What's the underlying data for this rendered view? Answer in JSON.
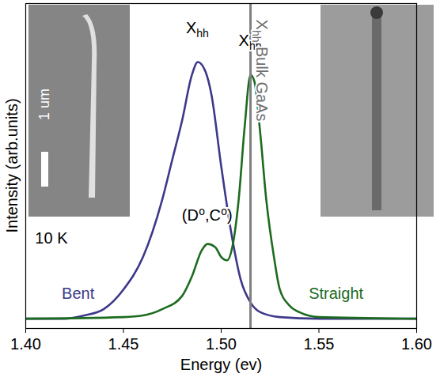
{
  "chart_data": {
    "type": "line",
    "x_label": "Energy (ev)",
    "y_label": "Intensity (arb.units)",
    "xlim": [
      1.4,
      1.6
    ],
    "xticks": [
      {
        "value": 1.4,
        "label": "1.40"
      },
      {
        "value": 1.45,
        "label": "1.45"
      },
      {
        "value": 1.5,
        "label": "1.50"
      },
      {
        "value": 1.55,
        "label": "1.55"
      },
      {
        "value": 1.6,
        "label": "1.60"
      }
    ],
    "ylim": [
      0,
      1
    ],
    "yticks": [],
    "tick_labels": "x",
    "series": [
      {
        "name": "Bent",
        "color": "#3d3889",
        "peak_label": [
          "X",
          "hh"
        ],
        "x": [
          1.4,
          1.42,
          1.43,
          1.44,
          1.45,
          1.46,
          1.47,
          1.475,
          1.48,
          1.485,
          1.488,
          1.492,
          1.495,
          1.5,
          1.505,
          1.51,
          1.515,
          1.52,
          1.53,
          1.55,
          1.6
        ],
        "values": [
          0.03,
          0.03,
          0.04,
          0.06,
          0.12,
          0.22,
          0.4,
          0.52,
          0.64,
          0.78,
          0.82,
          0.79,
          0.72,
          0.5,
          0.3,
          0.15,
          0.08,
          0.05,
          0.035,
          0.03,
          0.03
        ]
      },
      {
        "name": "Straight",
        "color": "#1c6b1f",
        "peak_label": [
          "X",
          "hh"
        ],
        "x": [
          1.4,
          1.45,
          1.46,
          1.47,
          1.48,
          1.485,
          1.49,
          1.493,
          1.497,
          1.5,
          1.503,
          1.506,
          1.509,
          1.512,
          1.515,
          1.517,
          1.52,
          1.523,
          1.527,
          1.53,
          1.535,
          1.54,
          1.55,
          1.6
        ],
        "values": [
          0.03,
          0.035,
          0.04,
          0.06,
          0.1,
          0.16,
          0.24,
          0.26,
          0.25,
          0.22,
          0.21,
          0.26,
          0.4,
          0.62,
          0.78,
          0.76,
          0.6,
          0.4,
          0.22,
          0.12,
          0.07,
          0.05,
          0.035,
          0.03
        ]
      }
    ],
    "reference_lines": [
      {
        "x": 1.515,
        "label": [
          "X",
          "hh",
          " Bulk GaAs"
        ],
        "color": "#808080"
      }
    ],
    "annotations": [
      {
        "text": "(D⁰,C⁰)"
      },
      {
        "text": "10 K"
      }
    ],
    "insets": [
      {
        "scale_bar": "1 um"
      }
    ]
  }
}
